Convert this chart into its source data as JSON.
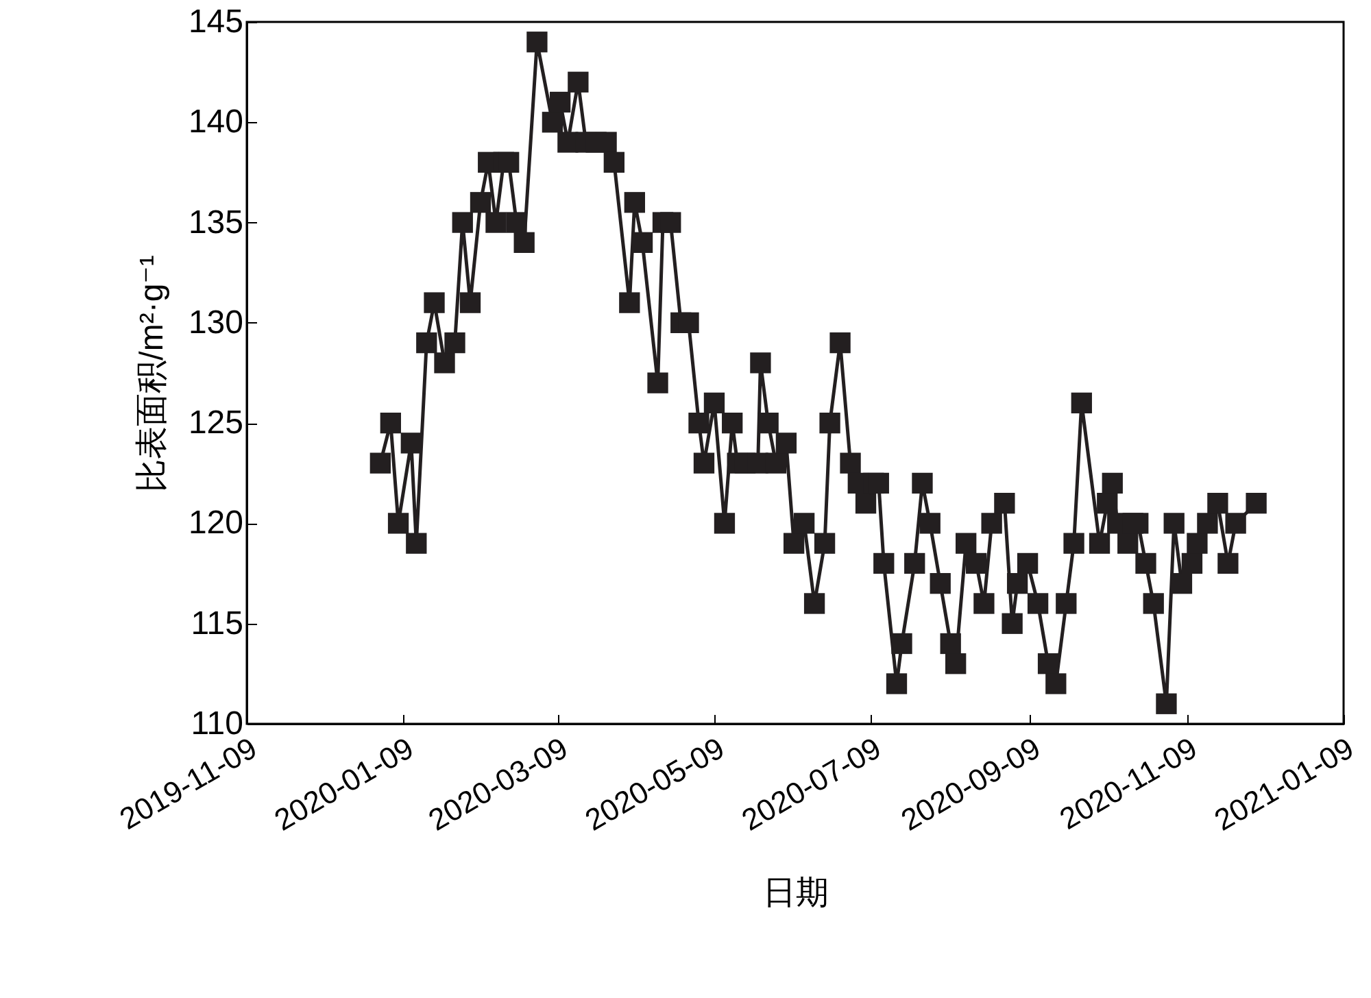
{
  "chart_data": {
    "type": "line",
    "xlabel": "日期",
    "ylabel": "比表面积/m²·g⁻¹",
    "marker": "square",
    "grid": false,
    "xlim": [
      "2019-11-09",
      "2021-01-09"
    ],
    "xticks": [
      "2019-11-09",
      "2020-01-09",
      "2020-03-09",
      "2020-05-09",
      "2020-07-09",
      "2020-09-09",
      "2020-11-09",
      "2021-01-09"
    ],
    "ylim": [
      110,
      145
    ],
    "yticks": [
      110,
      115,
      120,
      125,
      130,
      135,
      140,
      145
    ],
    "x": [
      "2019-12-31",
      "2020-01-04",
      "2020-01-07",
      "2020-01-12",
      "2020-01-14",
      "2020-01-18",
      "2020-01-21",
      "2020-01-25",
      "2020-01-29",
      "2020-02-01",
      "2020-02-04",
      "2020-02-08",
      "2020-02-11",
      "2020-02-14",
      "2020-02-17",
      "2020-02-19",
      "2020-02-22",
      "2020-02-25",
      "2020-03-01",
      "2020-03-07",
      "2020-03-10",
      "2020-03-13",
      "2020-03-17",
      "2020-03-20",
      "2020-03-24",
      "2020-03-28",
      "2020-03-31",
      "2020-04-06",
      "2020-04-08",
      "2020-04-11",
      "2020-04-17",
      "2020-04-19",
      "2020-04-22",
      "2020-04-26",
      "2020-04-29",
      "2020-05-03",
      "2020-05-05",
      "2020-05-09",
      "2020-05-13",
      "2020-05-16",
      "2020-05-18",
      "2020-05-21",
      "2020-05-26",
      "2020-05-27",
      "2020-05-30",
      "2020-06-02",
      "2020-06-06",
      "2020-06-09",
      "2020-06-13",
      "2020-06-17",
      "2020-06-21",
      "2020-06-23",
      "2020-06-27",
      "2020-07-01",
      "2020-07-04",
      "2020-07-07",
      "2020-07-10",
      "2020-07-12",
      "2020-07-14",
      "2020-07-19",
      "2020-07-21",
      "2020-07-26",
      "2020-07-29",
      "2020-08-01",
      "2020-08-05",
      "2020-08-09",
      "2020-08-11",
      "2020-08-15",
      "2020-08-19",
      "2020-08-22",
      "2020-08-25",
      "2020-08-30",
      "2020-09-02",
      "2020-09-04",
      "2020-09-08",
      "2020-09-12",
      "2020-09-16",
      "2020-09-19",
      "2020-09-23",
      "2020-09-26",
      "2020-09-29",
      "2020-10-06",
      "2020-10-09",
      "2020-10-11",
      "2020-10-13",
      "2020-10-17",
      "2020-10-19",
      "2020-10-21",
      "2020-10-24",
      "2020-10-27",
      "2020-11-01",
      "2020-11-04",
      "2020-11-07",
      "2020-11-11",
      "2020-11-13",
      "2020-11-17",
      "2020-11-21",
      "2020-11-25",
      "2020-11-28",
      "2020-12-06"
    ],
    "series": [
      {
        "color": "#231f20",
        "values": [
          123,
          125,
          120,
          124,
          119,
          129,
          131,
          128,
          129,
          135,
          131,
          136,
          138,
          135,
          138,
          138,
          135,
          134,
          144,
          140,
          141,
          139,
          142,
          139,
          139,
          139,
          138,
          131,
          136,
          134,
          127,
          135,
          135,
          130,
          130,
          125,
          123,
          126,
          120,
          125,
          123,
          123,
          123,
          128,
          125,
          123,
          124,
          119,
          120,
          116,
          119,
          125,
          129,
          123,
          122,
          121,
          122,
          122,
          118,
          112,
          114,
          118,
          122,
          120,
          117,
          114,
          113,
          119,
          118,
          116,
          120,
          121,
          115,
          117,
          118,
          116,
          113,
          112,
          116,
          119,
          126,
          119,
          121,
          122,
          120,
          119,
          120,
          120,
          118,
          116,
          111,
          120,
          117,
          118,
          119,
          120,
          121,
          118,
          120,
          121
        ]
      }
    ]
  }
}
